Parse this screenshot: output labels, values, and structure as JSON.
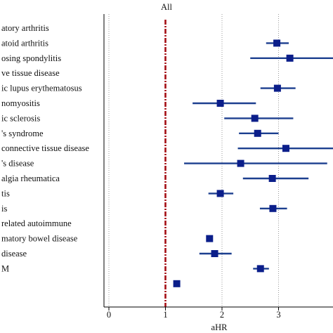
{
  "chart_data": {
    "type": "forest",
    "title": "All",
    "xlabel": "aHR",
    "xlim": [
      -0.1,
      4.0
    ],
    "xticks": [
      0,
      1,
      2,
      3,
      4
    ],
    "reference_line": 1,
    "grid": "vertical dotted",
    "colors": {
      "point": "#0b1e8a",
      "ci": "#1c3f8f",
      "reference": "#a50f15",
      "grid": "#9a9a9a"
    },
    "rows": [
      {
        "label": "atory arthritis"
      },
      {
        "label": "atoid arthritis",
        "hr": 2.97,
        "ci": [
          2.78,
          3.18
        ]
      },
      {
        "label": "osing spondylitis",
        "hr": 3.2,
        "ci": [
          2.5,
          4.0
        ]
      },
      {
        "label": "ve tissue disease"
      },
      {
        "label": "ic lupus erythematosus",
        "hr": 2.98,
        "ci": [
          2.68,
          3.3
        ]
      },
      {
        "label": "nomyositis",
        "hr": 1.97,
        "ci": [
          1.48,
          2.6
        ]
      },
      {
        "label": "ic sclerosis",
        "hr": 2.58,
        "ci": [
          2.04,
          3.26
        ]
      },
      {
        "label": "'s syndrome",
        "hr": 2.63,
        "ci": [
          2.3,
          3.0
        ]
      },
      {
        "label": "connective tissue disease",
        "hr": 3.13,
        "ci": [
          2.28,
          4.0
        ]
      },
      {
        "label": "'s disease",
        "hr": 2.33,
        "ci": [
          1.33,
          3.86
        ]
      },
      {
        "label": "algia rheumatica",
        "hr": 2.89,
        "ci": [
          2.37,
          3.53
        ]
      },
      {
        "label": "tis",
        "hr": 1.97,
        "ci": [
          1.76,
          2.2
        ]
      },
      {
        "label": "is",
        "hr": 2.9,
        "ci": [
          2.67,
          3.15
        ]
      },
      {
        "label": "related autoimmune"
      },
      {
        "label": "matory bowel disease",
        "hr": 1.78,
        "ci": [
          1.78,
          1.78
        ]
      },
      {
        "label": "disease",
        "hr": 1.87,
        "ci": [
          1.6,
          2.17
        ]
      },
      {
        "label": "M",
        "hr": 2.68,
        "ci": [
          2.55,
          2.83
        ]
      },
      {
        "label": "",
        "hr": 1.2,
        "ci": [
          1.2,
          1.2
        ]
      }
    ]
  }
}
